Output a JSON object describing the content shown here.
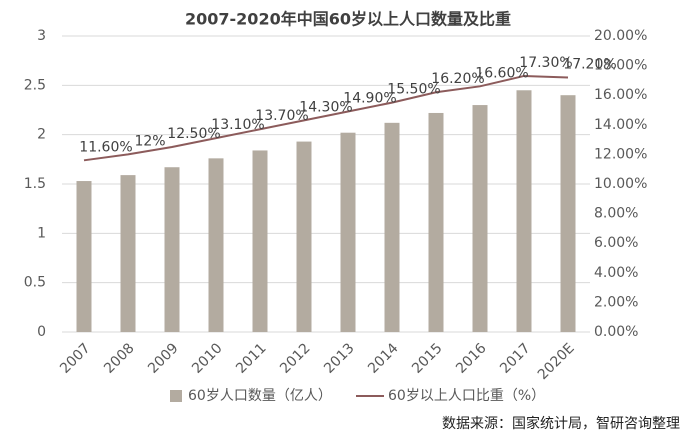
{
  "chart_data": {
    "type": "bar_line",
    "title": "2007-2020年中国60岁以上人口数量及比重",
    "categories": [
      "2007",
      "2008",
      "2009",
      "2010",
      "2011",
      "2012",
      "2013",
      "2014",
      "2015",
      "2016",
      "2017",
      "2020E"
    ],
    "series": [
      {
        "name": "60岁人口数量（亿人）",
        "color": "#b3aba0",
        "type": "bar",
        "values": [
          1.53,
          1.59,
          1.67,
          1.76,
          1.84,
          1.93,
          2.02,
          2.12,
          2.22,
          2.3,
          2.45,
          2.4
        ]
      },
      {
        "name": "60岁以上人口比重（%）",
        "color": "#8c5b5b",
        "type": "line",
        "axis": "y2",
        "values": [
          11.6,
          12,
          12.5,
          13.1,
          13.7,
          14.3,
          14.9,
          15.5,
          16.2,
          16.6,
          17.3,
          17.2
        ],
        "value_labels": [
          "11.60%",
          "12%",
          "12.50%",
          "13.10%",
          "13.70%",
          "14.30%",
          "14.90%",
          "15.50%",
          "16.20%",
          "16.60%",
          "17.30%",
          "17.20%"
        ]
      }
    ],
    "ylim": [
      0,
      3
    ],
    "yticks": [
      0,
      0.5,
      1,
      1.5,
      2,
      2.5,
      3
    ],
    "y2lim": [
      0,
      20
    ],
    "y2ticks": [
      {
        "value": 0,
        "label": "0.00%"
      },
      {
        "value": 2,
        "label": "2.00%"
      },
      {
        "value": 4,
        "label": "4.00%"
      },
      {
        "value": 6,
        "label": "6.00%"
      },
      {
        "value": 8,
        "label": "8.00%"
      },
      {
        "value": 10,
        "label": "10.00%"
      },
      {
        "value": 12,
        "label": "12.00%"
      },
      {
        "value": 14,
        "label": "14.00%"
      },
      {
        "value": 16,
        "label": "16.00%"
      },
      {
        "value": 18,
        "label": "18.00%"
      },
      {
        "value": 20,
        "label": "20.00%"
      }
    ],
    "grid": true,
    "legend": "bottom",
    "source": "数据来源：国家统计局，智研咨询整理"
  }
}
